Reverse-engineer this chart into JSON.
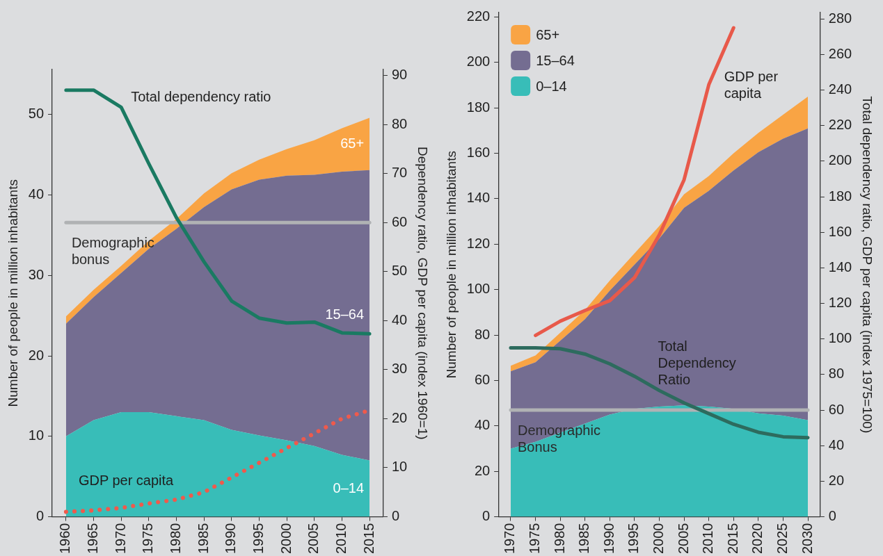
{
  "chart_data": [
    {
      "type": "area",
      "stacked": true,
      "legend": false,
      "grid": false,
      "marker": "none",
      "ylabel": "Number of people in million inhabitants",
      "y2label": "Dependency ratio, GDP per capita (index 1960=1)",
      "categories": [
        "1960",
        "1965",
        "1970",
        "1975",
        "1980",
        "1985",
        "1990",
        "1995",
        "2000",
        "2005",
        "2010",
        "2015"
      ],
      "ylim": [
        0,
        55.6
      ],
      "yticks": [
        0,
        10,
        20,
        30,
        40,
        50
      ],
      "y2lim": [
        0,
        91.2
      ],
      "y2ticks": [
        0,
        10,
        20,
        30,
        40,
        50,
        60,
        70,
        80,
        90
      ],
      "series": [
        {
          "name": "0–14",
          "type": "area",
          "color": "#38bdb8",
          "values": [
            10,
            12,
            13,
            13,
            12.5,
            12,
            10.8,
            10.1,
            9.5,
            8.8,
            7.7,
            7
          ]
        },
        {
          "name": "15–64",
          "type": "area",
          "color": "#746d91",
          "values": [
            14,
            15.3,
            17.3,
            20.3,
            23.3,
            26.5,
            29.9,
            31.8,
            32.9,
            33.7,
            35.2,
            36.1
          ]
        },
        {
          "name": "65+",
          "type": "area",
          "color": "#f9a444",
          "values": [
            0.9,
            0.9,
            0.9,
            1,
            1.2,
            1.7,
            2,
            2.5,
            3.3,
            4.3,
            5.4,
            6.5
          ]
        },
        {
          "name": "Total dependency ratio",
          "type": "line",
          "axis": "y2",
          "color": "#1a7a62",
          "line_style": "solid",
          "values": [
            87,
            87,
            83.5,
            72,
            61,
            52,
            44,
            40.5,
            39.5,
            39.7,
            37.5,
            37.3
          ]
        },
        {
          "name": "GDP per capita",
          "type": "line",
          "axis": "y2",
          "color": "#ef5a4c",
          "line_style": "dotted",
          "values": [
            1,
            1.3,
            1.8,
            2.7,
            3.5,
            5,
            8,
            11,
            14,
            17,
            20,
            21.7
          ]
        }
      ],
      "ref_lines": [
        {
          "axis": "y2",
          "value": 60,
          "label": "Demographic bonus",
          "color": "#b0b2b4"
        }
      ]
    },
    {
      "type": "area",
      "stacked": true,
      "legend": "top left",
      "grid": false,
      "marker": "none",
      "ylabel": "Number of people in million inhabitants",
      "y2label": "Total dependency ratio, GDP per capita (index 1975=100)",
      "categories": [
        "1970",
        "1975",
        "1980",
        "1985",
        "1990",
        "1995",
        "2000",
        "2005",
        "2010",
        "2015",
        "2020",
        "2025",
        "2030"
      ],
      "ylim": [
        0,
        222
      ],
      "yticks": [
        0,
        20,
        40,
        60,
        80,
        100,
        120,
        140,
        160,
        180,
        200,
        220
      ],
      "y2lim": [
        0,
        283.6
      ],
      "y2ticks": [
        0,
        20,
        40,
        60,
        80,
        100,
        120,
        140,
        160,
        180,
        200,
        220,
        240,
        260,
        280
      ],
      "series": [
        {
          "name": "0–14",
          "type": "area",
          "color": "#38bdb8",
          "values": [
            30,
            33,
            37,
            41,
            45,
            47.5,
            48.5,
            49,
            48.5,
            47.5,
            45.5,
            44.5,
            42.5
          ]
        },
        {
          "name": "15–64",
          "type": "area",
          "color": "#746d91",
          "values": [
            34,
            35,
            40.5,
            46,
            54.5,
            63.5,
            74,
            87,
            95,
            105,
            115,
            122,
            128.5
          ]
        },
        {
          "name": "65+",
          "type": "area",
          "color": "#f9a444",
          "values": [
            2.5,
            3,
            3.5,
            4,
            4.5,
            5,
            5.5,
            6,
            6.5,
            7.5,
            8.5,
            10.5,
            14
          ]
        },
        {
          "name": "GDP per capita",
          "type": "line",
          "axis": "y2",
          "color": "#e8594a",
          "line_style": "solid",
          "values": [
            null,
            102,
            110,
            116,
            121.5,
            134.5,
            158.5,
            189.5,
            243,
            275,
            null,
            null,
            null
          ]
        },
        {
          "name": "Total Dependency Ratio",
          "type": "line",
          "axis": "y2",
          "color": "#2d6b5e",
          "line_style": "solid",
          "values": [
            95,
            95,
            94.5,
            91.5,
            86,
            79,
            71,
            64,
            58,
            52,
            47.5,
            45,
            44.5
          ]
        }
      ],
      "ref_lines": [
        {
          "axis": "y2",
          "value": 60,
          "label": "Demographic Bonus",
          "color": "#b0b2b4"
        }
      ]
    }
  ]
}
